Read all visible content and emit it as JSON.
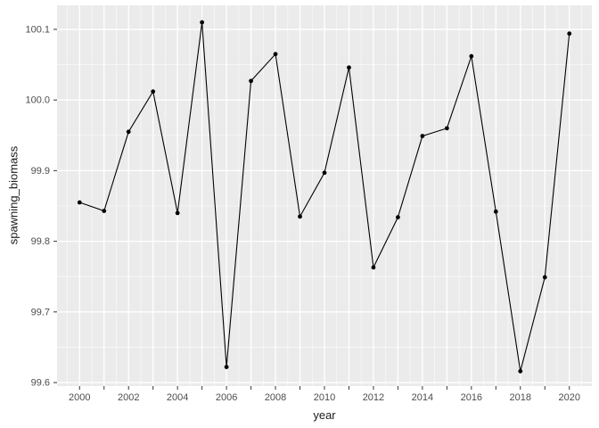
{
  "figure": {
    "xlabel": "year",
    "ylabel": "spawning_biomass"
  },
  "chart_data": {
    "type": "line",
    "title": "",
    "xlabel": "year",
    "ylabel": "spawning_biomass",
    "series_name": "spawning_biomass",
    "x": [
      2000,
      2001,
      2002,
      2003,
      2004,
      2005,
      2006,
      2007,
      2008,
      2009,
      2010,
      2011,
      2012,
      2013,
      2014,
      2015,
      2016,
      2017,
      2018,
      2019,
      2020
    ],
    "values": [
      99.855,
      99.843,
      99.955,
      100.012,
      99.84,
      100.11,
      99.622,
      100.027,
      100.065,
      99.835,
      99.897,
      100.046,
      99.763,
      99.834,
      99.949,
      99.96,
      100.062,
      99.842,
      99.616,
      99.749,
      100.094
    ],
    "x_ticks": [
      2000,
      2001,
      2002,
      2003,
      2004,
      2005,
      2006,
      2007,
      2008,
      2009,
      2010,
      2011,
      2012,
      2013,
      2014,
      2015,
      2016,
      2017,
      2018,
      2019,
      2020
    ],
    "x_tick_labels": [
      "2000",
      "",
      "2002",
      "",
      "2004",
      "",
      "2006",
      "",
      "2008",
      "",
      "2010",
      "",
      "2012",
      "",
      "2014",
      "",
      "2016",
      "",
      "2018",
      "",
      "2020"
    ],
    "y_ticks": [
      99.6,
      99.7,
      99.8,
      99.9,
      100.0,
      100.1
    ],
    "y_tick_labels": [
      "99.6",
      "99.7",
      "99.8",
      "99.9",
      "100.0",
      "100.1"
    ],
    "xlim": [
      1999.08,
      2020.92
    ],
    "ylim": [
      99.595,
      100.134
    ],
    "grid": "major and minor gridlines, white on grey panel",
    "legend": "none",
    "marker": "filled-circle",
    "colors": {
      "panel_bg": "#EBEBEB",
      "grid_major": "#FFFFFF",
      "grid_minor": "#FFFFFF",
      "line": "#000000",
      "point": "#000000",
      "tick_label": "#4D4D4D",
      "axis_title": "#1A1A1A",
      "tick_mark": "#333333"
    }
  }
}
